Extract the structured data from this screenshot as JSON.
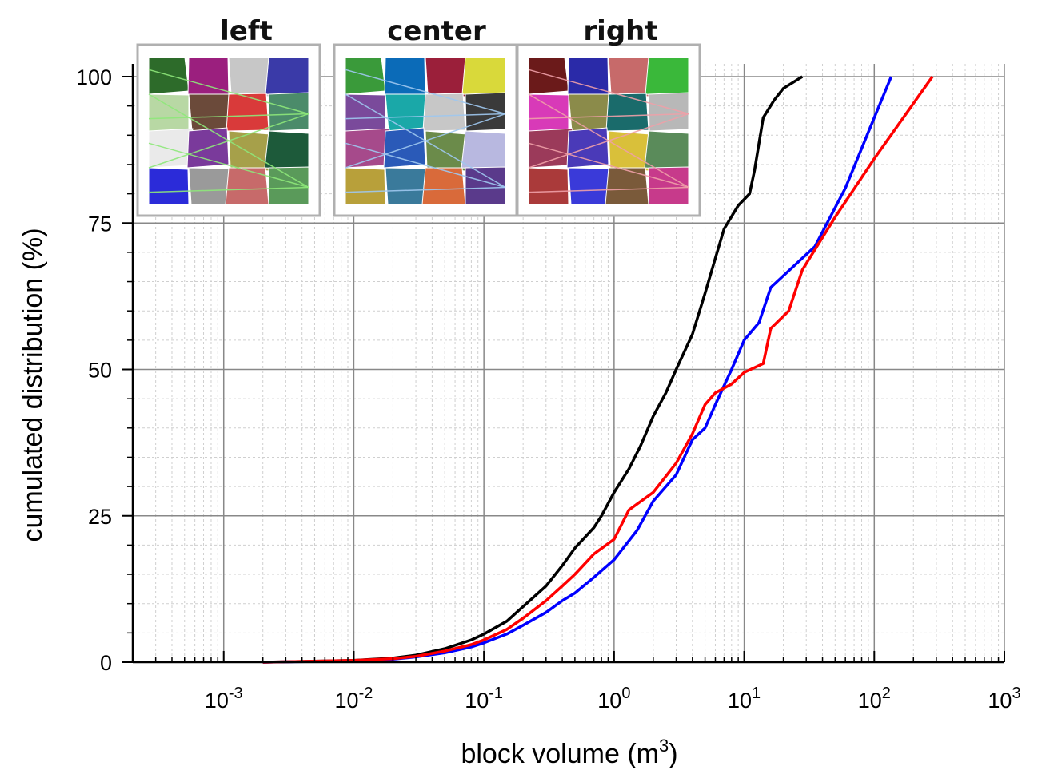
{
  "chart_data": {
    "type": "line",
    "xlabel": "block volume (m",
    "xlabel_sup": "3",
    "xlabel_close": ")",
    "ylabel": "cumulated distribution (%)",
    "xscale": "log",
    "xlim": [
      0.0002,
      1000
    ],
    "ylim": [
      0,
      100
    ],
    "grid": true,
    "x_ticks": [
      {
        "value": 0.001,
        "base": "10",
        "exp": "-3"
      },
      {
        "value": 0.01,
        "base": "10",
        "exp": "-2"
      },
      {
        "value": 0.1,
        "base": "10",
        "exp": "-1"
      },
      {
        "value": 1,
        "base": "10",
        "exp": "0"
      },
      {
        "value": 10,
        "base": "10",
        "exp": "1"
      },
      {
        "value": 100,
        "base": "10",
        "exp": "2"
      },
      {
        "value": 1000,
        "base": "10",
        "exp": "3"
      }
    ],
    "y_ticks": [
      {
        "value": 0,
        "label": "0"
      },
      {
        "value": 25,
        "label": "25"
      },
      {
        "value": 50,
        "label": "50"
      },
      {
        "value": 75,
        "label": "75"
      },
      {
        "value": 100,
        "label": "100"
      }
    ],
    "series": [
      {
        "color": "#000000",
        "points": [
          [
            0.002,
            0
          ],
          [
            0.01,
            0.3
          ],
          [
            0.02,
            0.7
          ],
          [
            0.03,
            1.2
          ],
          [
            0.05,
            2.3
          ],
          [
            0.08,
            3.8
          ],
          [
            0.1,
            4.8
          ],
          [
            0.15,
            7
          ],
          [
            0.2,
            9.5
          ],
          [
            0.3,
            13
          ],
          [
            0.4,
            16.5
          ],
          [
            0.5,
            19.5
          ],
          [
            0.7,
            23
          ],
          [
            0.8,
            25
          ],
          [
            1.0,
            29
          ],
          [
            1.3,
            33
          ],
          [
            1.6,
            37
          ],
          [
            2.0,
            42
          ],
          [
            2.5,
            46
          ],
          [
            3.0,
            50
          ],
          [
            4.0,
            56
          ],
          [
            5.0,
            63
          ],
          [
            6.0,
            69
          ],
          [
            7.0,
            74
          ],
          [
            9.0,
            78
          ],
          [
            11,
            80
          ],
          [
            12,
            84
          ],
          [
            14,
            93
          ],
          [
            17,
            96
          ],
          [
            20,
            98
          ],
          [
            28,
            100
          ]
        ]
      },
      {
        "color": "#0000ff",
        "points": [
          [
            0.002,
            0
          ],
          [
            0.01,
            0.2
          ],
          [
            0.02,
            0.5
          ],
          [
            0.03,
            0.9
          ],
          [
            0.05,
            1.6
          ],
          [
            0.08,
            2.6
          ],
          [
            0.1,
            3.3
          ],
          [
            0.15,
            4.8
          ],
          [
            0.2,
            6.3
          ],
          [
            0.3,
            8.5
          ],
          [
            0.4,
            10.5
          ],
          [
            0.5,
            11.8
          ],
          [
            0.7,
            14.5
          ],
          [
            1.0,
            17.5
          ],
          [
            1.5,
            22.5
          ],
          [
            2.0,
            27.5
          ],
          [
            3.0,
            32
          ],
          [
            4.0,
            38
          ],
          [
            5.0,
            40
          ],
          [
            6.0,
            44
          ],
          [
            8.0,
            50
          ],
          [
            10,
            55
          ],
          [
            13,
            58
          ],
          [
            16,
            64
          ],
          [
            25,
            68
          ],
          [
            35,
            71
          ],
          [
            60,
            81
          ],
          [
            100,
            93
          ],
          [
            135,
            100
          ]
        ]
      },
      {
        "color": "#ff0000",
        "points": [
          [
            0.002,
            0
          ],
          [
            0.01,
            0.3
          ],
          [
            0.02,
            0.6
          ],
          [
            0.03,
            1.0
          ],
          [
            0.05,
            1.9
          ],
          [
            0.08,
            3.0
          ],
          [
            0.1,
            3.8
          ],
          [
            0.15,
            5.6
          ],
          [
            0.2,
            7.5
          ],
          [
            0.3,
            10.5
          ],
          [
            0.4,
            13
          ],
          [
            0.5,
            15
          ],
          [
            0.7,
            18.5
          ],
          [
            1.0,
            21
          ],
          [
            1.3,
            26
          ],
          [
            2.0,
            29
          ],
          [
            3.0,
            34
          ],
          [
            4.0,
            39
          ],
          [
            5.0,
            44
          ],
          [
            6.0,
            46
          ],
          [
            8.0,
            47.5
          ],
          [
            10,
            49.5
          ],
          [
            14,
            51
          ],
          [
            16,
            57
          ],
          [
            22,
            60
          ],
          [
            28,
            67
          ],
          [
            50,
            76
          ],
          [
            100,
            86
          ],
          [
            280,
            100
          ]
        ]
      }
    ],
    "insets": [
      {
        "label": "left",
        "edge_color": "#8ee87a",
        "tiles": [
          "#2d6b2a",
          "#9b1f7e",
          "#c7c7c7",
          "#3a3aa8",
          "#b8d8a4",
          "#6b4a3a",
          "#d93a3a",
          "#4b8b6a",
          "#eaeaea",
          "#7a3a9b",
          "#a6a04a",
          "#1d5a3a",
          "#2b2bd9",
          "#9a9a9a",
          "#c76a6a",
          "#5a9a5a"
        ]
      },
      {
        "label": "center",
        "edge_color": "#9fc8f0",
        "tiles": [
          "#3a9a3a",
          "#0b6bb8",
          "#9b1f3a",
          "#d9d93a",
          "#7a4a9b",
          "#1aa8a8",
          "#c7c7c7",
          "#3a3a3a",
          "#a64a8b",
          "#2a5ab8",
          "#6b8b4a",
          "#b8b8e0",
          "#b8a03a",
          "#3a7a9b",
          "#d96a3a",
          "#5a3a8b"
        ]
      },
      {
        "label": "right",
        "edge_color": "#f0a0a8",
        "tiles": [
          "#6b1a1a",
          "#2a2aa8",
          "#c76a6a",
          "#3ab83a",
          "#d83ab8",
          "#8b8b4a",
          "#1a6b6b",
          "#b8b8b8",
          "#9b3a5a",
          "#4a3ab8",
          "#d9c03a",
          "#5a8b5a",
          "#aa3a3a",
          "#3a3ad9",
          "#7a5a3a",
          "#c73a8b"
        ]
      }
    ]
  }
}
